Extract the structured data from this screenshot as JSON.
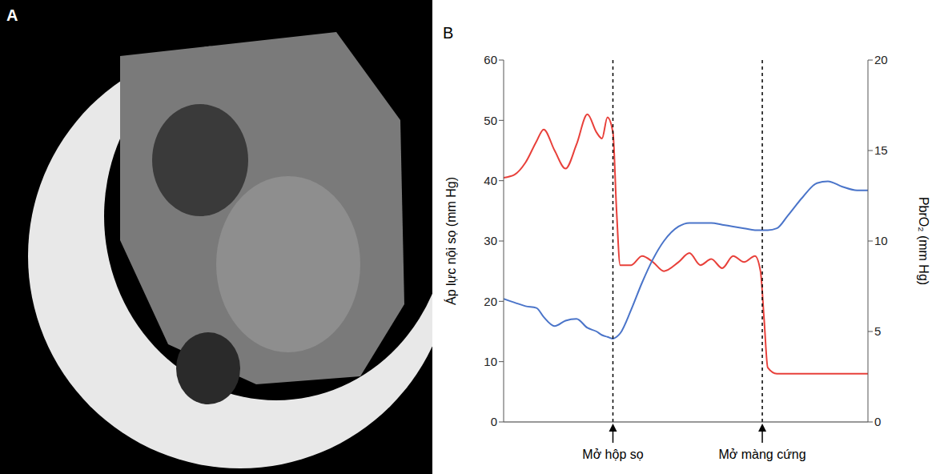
{
  "panel_a": {
    "label": "A"
  },
  "chart_data": {
    "type": "line",
    "panel": "B",
    "x": [
      0,
      3,
      6,
      9,
      11,
      14,
      17,
      20,
      23,
      25.5,
      27,
      28.5,
      30,
      31,
      32,
      35,
      38,
      41,
      44,
      48,
      51,
      54,
      57,
      60,
      63,
      66,
      69,
      70.5,
      71.5,
      72.5,
      75,
      78,
      82,
      86,
      89,
      93,
      97,
      100
    ],
    "xlim": [
      0,
      100
    ],
    "xticks": [],
    "ylabel": "Áp lực nội sọ (mm Hg)",
    "ylim": [
      0,
      60
    ],
    "yticks": [
      0,
      10,
      20,
      30,
      40,
      50,
      60
    ],
    "y2label": "PbrO₂ (mm Hg)",
    "y2lim": [
      0,
      20
    ],
    "y2ticks": [
      0,
      5,
      10,
      15,
      20
    ],
    "grid": false,
    "tick_labels": "y",
    "series": [
      {
        "color": "#e8403a",
        "marker": "none",
        "line_style": "solid",
        "values": [
          40.5,
          41,
          43,
          46.5,
          48.5,
          45,
          42,
          46,
          51,
          48,
          47,
          50.5,
          48,
          35,
          26,
          26,
          27.5,
          26.5,
          25,
          26.5,
          28,
          26,
          27,
          25.5,
          27.5,
          26.5,
          27.5,
          25,
          17,
          9,
          8,
          8,
          8,
          8,
          8,
          8,
          8,
          8
        ]
      },
      {
        "color": "#4a74c9",
        "marker": "none",
        "line_style": "solid",
        "axis": "y2",
        "values": [
          6.8,
          6.6,
          6.4,
          6.3,
          5.8,
          5.3,
          5.6,
          5.7,
          5.2,
          5.0,
          4.8,
          4.7,
          4.6,
          4.7,
          4.9,
          6.2,
          7.7,
          9.0,
          10.0,
          10.8,
          11.0,
          11.0,
          11.0,
          10.9,
          10.8,
          10.7,
          10.6,
          10.6,
          10.6,
          10.6,
          10.7,
          11.4,
          12.4,
          13.2,
          13.3,
          13.0,
          12.8,
          12.8
        ]
      }
    ],
    "annotations": [
      {
        "x": 30,
        "text": "Mở hộp sọ"
      },
      {
        "x": 71,
        "text": "Mở màng cứng"
      }
    ]
  }
}
